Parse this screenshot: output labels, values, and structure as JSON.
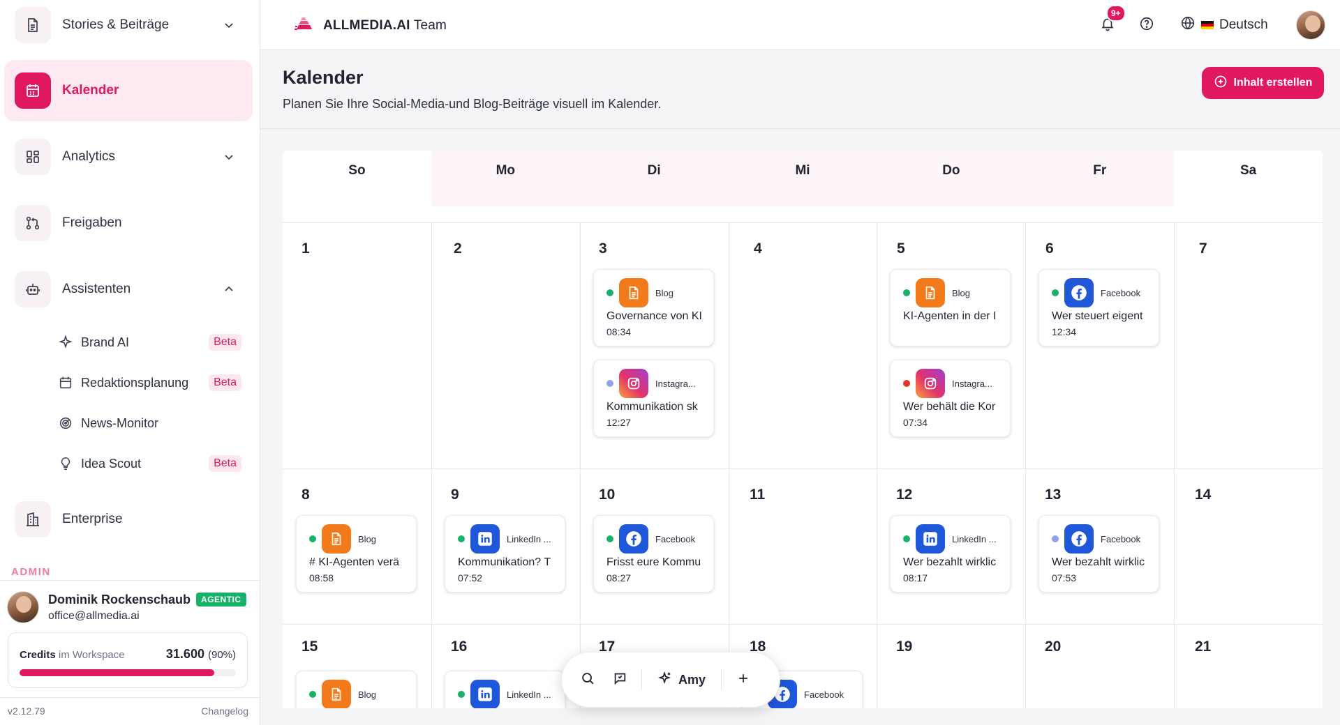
{
  "sidebar": {
    "items": [
      {
        "label": "Stories & Beiträge",
        "icon": "document-icon"
      },
      {
        "label": "Kalender",
        "icon": "calendar-icon"
      },
      {
        "label": "Analytics",
        "icon": "grid-icon"
      },
      {
        "label": "Freigaben",
        "icon": "git-pull-icon"
      },
      {
        "label": "Assistenten",
        "icon": "robot-icon"
      },
      {
        "label": "Enterprise",
        "icon": "building-icon"
      }
    ],
    "subitems": [
      {
        "label": "Brand AI",
        "badge": "Beta",
        "icon": "sparkle-icon"
      },
      {
        "label": "Redaktionsplanung",
        "badge": "Beta",
        "icon": "calendar-edit-icon"
      },
      {
        "label": "News-Monitor",
        "badge": "",
        "icon": "radar-icon"
      },
      {
        "label": "Idea Scout",
        "badge": "Beta",
        "icon": "lightbulb-icon"
      }
    ],
    "admin_label": "ADMIN",
    "user": {
      "name": "Dominik Rockenschaub",
      "badge": "AGENTIC",
      "email": "office@allmedia.ai"
    },
    "credits": {
      "label": "Credits",
      "scope": "im Workspace",
      "value": "31.600",
      "percent": "(90%)",
      "fill_fraction": 0.9
    },
    "version": "v2.12.79",
    "changelog": "Changelog"
  },
  "topbar": {
    "brand": "ALLMEDIA.AI",
    "team": " Team",
    "notif_badge": "9+",
    "language": "Deutsch"
  },
  "header": {
    "title": "Kalender",
    "subtitle": "Planen Sie Ihre Social-Media-und Blog-Beiträge visuell im Kalender.",
    "create_button": "Inhalt erstellen"
  },
  "calendar": {
    "weekdays": [
      "So",
      "Mo",
      "Di",
      "Mi",
      "Do",
      "Fr",
      "Sa"
    ],
    "days": [
      {
        "n": "1"
      },
      {
        "n": "2"
      },
      {
        "n": "3"
      },
      {
        "n": "4"
      },
      {
        "n": "5"
      },
      {
        "n": "6"
      },
      {
        "n": "7"
      },
      {
        "n": "8"
      },
      {
        "n": "9"
      },
      {
        "n": "10"
      },
      {
        "n": "11"
      },
      {
        "n": "12"
      },
      {
        "n": "13"
      },
      {
        "n": "14"
      },
      {
        "n": "15"
      },
      {
        "n": "16"
      },
      {
        "n": "17"
      },
      {
        "n": "18"
      },
      {
        "n": "19"
      },
      {
        "n": "20"
      },
      {
        "n": "21"
      }
    ],
    "events": [
      {
        "type": "Blog",
        "title": "Governance von KI",
        "time": "08:34",
        "status": "#17b26a",
        "kind": "blog"
      },
      {
        "type": "Instagra...",
        "title": "Kommunikation sk",
        "time": "12:27",
        "status": "#8ea5e6",
        "kind": "insta"
      },
      {
        "type": "Blog",
        "title": "KI-Agenten in der I",
        "time": "",
        "status": "#17b26a",
        "kind": "blog"
      },
      {
        "type": "Instagra...",
        "title": "Wer behält die Kor",
        "time": "07:34",
        "status": "#e5352a",
        "kind": "insta"
      },
      {
        "type": "Facebook",
        "title": "Wer steuert eigent",
        "time": "12:34",
        "status": "#17b26a",
        "kind": "fb"
      },
      {
        "type": "Blog",
        "title": "# KI-Agenten verä",
        "time": "08:58",
        "status": "#17b26a",
        "kind": "blog"
      },
      {
        "type": "LinkedIn ...",
        "title": "Kommunikation? T",
        "time": "07:52",
        "status": "#17b26a",
        "kind": "li"
      },
      {
        "type": "Facebook",
        "title": "Frisst eure Kommu",
        "time": "08:27",
        "status": "#17b26a",
        "kind": "fb"
      },
      {
        "type": "LinkedIn ...",
        "title": "Wer bezahlt wirklic",
        "time": "08:17",
        "status": "#17b26a",
        "kind": "li"
      },
      {
        "type": "Facebook",
        "title": "Wer bezahlt wirklic",
        "time": "07:53",
        "status": "#8ea5e6",
        "kind": "fb"
      },
      {
        "type": "Blog",
        "title": "",
        "time": "",
        "status": "#17b26a",
        "kind": "blog"
      },
      {
        "type": "LinkedIn ...",
        "title": "",
        "time": "",
        "status": "#17b26a",
        "kind": "li"
      },
      {
        "type": "Facebook",
        "title": "",
        "time": "",
        "status": "",
        "kind": "fb"
      }
    ]
  },
  "floatbar": {
    "amy": "Amy"
  },
  "colors": {
    "accent": "#e0185f"
  }
}
